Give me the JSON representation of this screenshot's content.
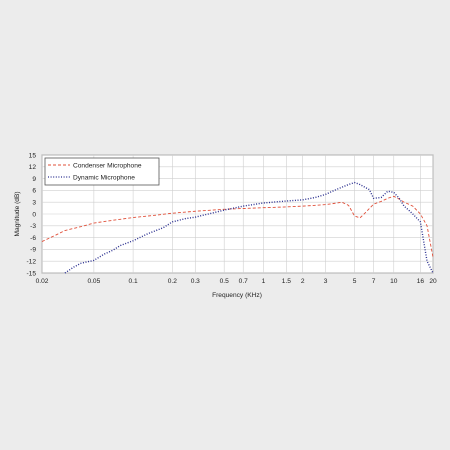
{
  "chart_data": {
    "type": "line",
    "title": "",
    "xlabel": "Frequency (KHz)",
    "ylabel": "Magnitude (dB)",
    "x_scale": "log",
    "xlim": [
      0.02,
      20
    ],
    "ylim": [
      -15,
      15
    ],
    "grid": true,
    "legend_position": "top-left",
    "x_ticks": [
      0.02,
      0.05,
      0.1,
      0.2,
      0.3,
      0.5,
      0.7,
      1,
      1.5,
      2,
      3,
      5,
      7,
      10,
      16,
      20
    ],
    "x_tick_labels": [
      "0.02",
      "0.05",
      "0.1",
      "0.2",
      "0.3",
      "0.5",
      "0.7",
      "1",
      "1.5",
      "2",
      "3",
      "5",
      "7",
      "10",
      "16",
      "20"
    ],
    "y_ticks": [
      15,
      12,
      9,
      6,
      3,
      0,
      -3,
      -6,
      -9,
      -12,
      -15
    ],
    "y_tick_labels": [
      "15",
      "12",
      "9",
      "6",
      "3",
      "0",
      "-3",
      "-6",
      "-9",
      "-12",
      "-15"
    ],
    "series": [
      {
        "name": "Condenser Microphone",
        "color": "#e0503a",
        "line_style": "dashed",
        "x": [
          0.02,
          0.025,
          0.03,
          0.04,
          0.05,
          0.07,
          0.1,
          0.15,
          0.2,
          0.3,
          0.5,
          0.7,
          1,
          1.5,
          2,
          2.5,
          3,
          3.5,
          4,
          4.5,
          5,
          5.5,
          6,
          7,
          8,
          9,
          10,
          11,
          12,
          13,
          14,
          16,
          18,
          20
        ],
        "y": [
          -7,
          -5.5,
          -4.2,
          -3.2,
          -2.3,
          -1.6,
          -0.9,
          -0.3,
          0.2,
          0.7,
          1.2,
          1.4,
          1.6,
          1.8,
          2,
          2.2,
          2.4,
          2.7,
          3,
          2.2,
          -0.5,
          -1,
          0.2,
          2.5,
          3.2,
          4,
          4.5,
          3.8,
          3,
          2.5,
          2,
          0,
          -3,
          -11
        ]
      },
      {
        "name": "Dynamic Microphone",
        "color": "#2a2f8f",
        "line_style": "dotted",
        "x": [
          0.03,
          0.035,
          0.04,
          0.05,
          0.06,
          0.07,
          0.08,
          0.1,
          0.13,
          0.17,
          0.2,
          0.25,
          0.3,
          0.4,
          0.5,
          0.7,
          1,
          1.5,
          2,
          2.5,
          3,
          3.5,
          4,
          4.5,
          5,
          5.5,
          6,
          6.5,
          7,
          8,
          9,
          10,
          11,
          12,
          13,
          14,
          16,
          18,
          20
        ],
        "y": [
          -15,
          -13.5,
          -12.5,
          -11.8,
          -10.2,
          -9.2,
          -8,
          -6.8,
          -5,
          -3.5,
          -2,
          -1.2,
          -0.8,
          0.2,
          1,
          2,
          2.8,
          3.3,
          3.6,
          4.2,
          5,
          6,
          6.8,
          7.5,
          8,
          7.5,
          6.8,
          6.2,
          4,
          4.2,
          5.8,
          5.5,
          4,
          2,
          1,
          0,
          -2,
          -12,
          -15
        ]
      }
    ]
  }
}
